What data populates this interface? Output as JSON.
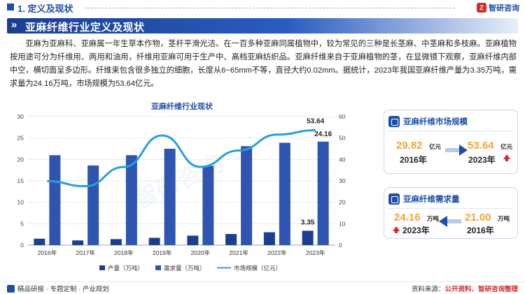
{
  "header": {
    "section": "1. 定义及现状",
    "brand": "智研咨询"
  },
  "title_bar": {
    "title": "亚麻纤维行业定义及现状"
  },
  "paragraph": "亚麻为亚麻科、亚麻属一年生草本作物，茎杆平滑光洁。在一百多种亚麻同属植物中，较为常见的三种是长茎麻、中茎麻和多枝麻。亚麻植物按用途可分为纤维用、两用和油用，纤维用亚麻可用于生产中、高档亚麻纺织品。亚麻纤维来自于亚麻植物的茎，在显微镜下观察，亚麻纤维内部中空，横切面呈多边形。纤维束包含很多独立的细胞，长度从6~65mm不等，直径大约0.02mm。据统计，2023年我国亚麻纤维产量为3.35万吨，需求量为24.16万吨，市场规模为53.64亿元。",
  "chart_data": {
    "type": "bar",
    "title": "亚麻纤维行业现状",
    "categories": [
      "2016年",
      "2017年",
      "2018年",
      "2019年",
      "2020年",
      "2021年",
      "2022年",
      "2023年"
    ],
    "series": [
      {
        "name": "产量（万吨）",
        "type": "bar",
        "axis": "left",
        "color": "#1b3f8f",
        "values": [
          1.5,
          1.1,
          1.4,
          1.7,
          2.2,
          2.6,
          3.0,
          3.35
        ]
      },
      {
        "name": "需求量（万吨）",
        "type": "bar",
        "axis": "left",
        "color": "#2f55b0",
        "values": [
          21.0,
          18.6,
          21.0,
          22.5,
          18.5,
          23.1,
          23.9,
          24.16
        ]
      },
      {
        "name": "市场规模（亿元）",
        "type": "line",
        "axis": "right",
        "color": "#2a9fd8",
        "values": [
          29.82,
          27.5,
          36.5,
          51.2,
          36.5,
          44.2,
          51.6,
          53.64
        ]
      }
    ],
    "ylim_left": [
      0,
      30
    ],
    "yticks_left": [
      "0",
      "5",
      "10",
      "15",
      "20",
      "25",
      "30"
    ],
    "ylim_right": [
      0,
      60
    ],
    "yticks_right": [
      "0",
      "10",
      "20",
      "30",
      "40",
      "50",
      "60"
    ],
    "data_labels": {
      "market_2023": "53.64",
      "demand_2023": "24.16",
      "output_2023": "3.35"
    },
    "grid": true,
    "legend_position": "bottom",
    "watermark": "智研咨询"
  },
  "card_market": {
    "title": "亚麻纤维市场规模",
    "from_value": "29.82",
    "from_unit": "亿元",
    "from_year": "2016年",
    "to_value": "53.64",
    "to_unit": "亿元",
    "to_year": "2023年"
  },
  "card_demand": {
    "title": "亚麻纤维需求量",
    "left_value": "24.16",
    "left_unit": "万吨",
    "left_year": "2023年",
    "right_value": "21.00",
    "right_unit": "万吨",
    "right_year": "2016年"
  },
  "footer": {
    "left": "精品研报 · 专题定制 · 产业规划",
    "right_prefix": "资料来源：",
    "right_text": "公开资料、智研咨询整理"
  },
  "colors": {
    "primary": "#1d4fa3",
    "accent_orange": "#f3a33a",
    "accent_red": "#d62b2b",
    "line": "#2a9fd8"
  },
  "icons": [
    "logo-icon",
    "chart-icon",
    "up-arrow-icon",
    "right-arrow-icon",
    "left-arrow-icon"
  ]
}
